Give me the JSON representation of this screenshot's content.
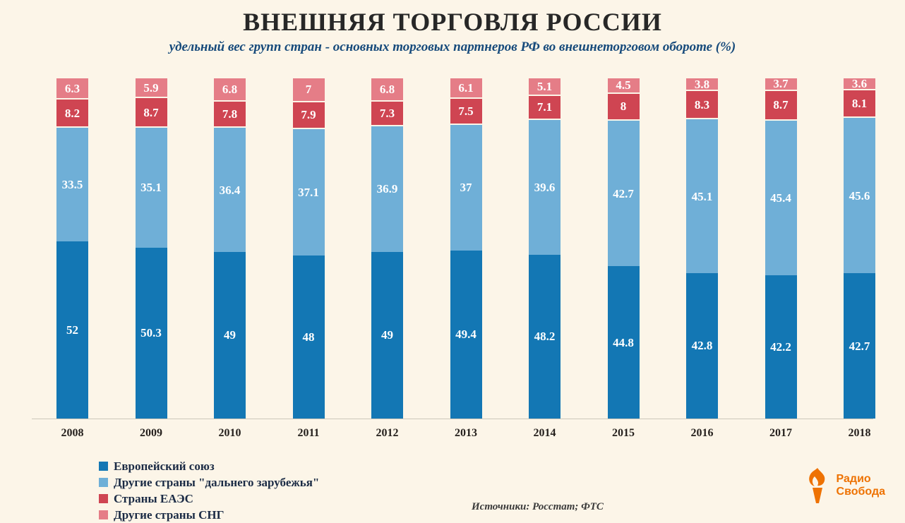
{
  "title": "ВНЕШНЯЯ ТОРГОВЛЯ РОССИИ",
  "subtitle": "удельный вес групп стран - основных торговых партнеров РФ во внешнеторговом обороте (%)",
  "source": "Источники: Росстат; ФТС",
  "logo": {
    "line1": "Радио",
    "line2": "Свобода",
    "color": "#ee7203"
  },
  "colors": {
    "background": "#fcf5e8",
    "axis_line": "#ccc7ba"
  },
  "chart_data": {
    "type": "bar",
    "stacked": true,
    "title": "ВНЕШНЯЯ ТОРГОВЛЯ РОССИИ",
    "subtitle": "удельный вес групп стран - основных торговых партнеров РФ во внешнеторговом обороте (%)",
    "categories": [
      "2008",
      "2009",
      "2010",
      "2011",
      "2012",
      "2013",
      "2014",
      "2015",
      "2016",
      "2017",
      "2018"
    ],
    "series": [
      {
        "name": "Европейский союз",
        "color": "#1377b4",
        "values": [
          52,
          50.3,
          49,
          48,
          49,
          49.4,
          48.2,
          44.8,
          42.8,
          42.2,
          42.7
        ]
      },
      {
        "name": "Другие страны \"дальнего зарубежья\"",
        "color": "#6fafd7",
        "values": [
          33.5,
          35.1,
          36.4,
          37.1,
          36.9,
          37,
          39.6,
          42.7,
          45.1,
          45.4,
          45.6
        ]
      },
      {
        "name": "Страны ЕАЭС",
        "color": "#cf4552",
        "values": [
          8.2,
          8.7,
          7.8,
          7.9,
          7.3,
          7.5,
          7.1,
          8,
          8.3,
          8.7,
          8.1
        ]
      },
      {
        "name": "Другие страны СНГ",
        "color": "#e57d87",
        "values": [
          6.3,
          5.9,
          6.8,
          7,
          6.8,
          6.1,
          5.1,
          4.5,
          3.8,
          3.7,
          3.6
        ]
      }
    ],
    "ylim": [
      0,
      100
    ],
    "ylabel": "",
    "xlabel": "",
    "grid": false,
    "value_labels": true,
    "legend_position": "bottom-left"
  }
}
